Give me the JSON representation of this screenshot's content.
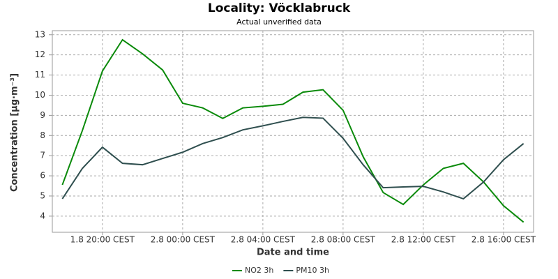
{
  "chart_data": {
    "type": "line",
    "title": "Locality: Vöcklabruck",
    "subtitle": "Actual unverified data",
    "x_label": "Date and time",
    "y_label": "Concentration [µg·m⁻³]",
    "categories": [
      null,
      null,
      "1.8 20:00 CEST",
      null,
      null,
      null,
      "2.8 00:00 CEST",
      null,
      null,
      null,
      "2.8 04:00 CEST",
      null,
      null,
      null,
      "2.8 08:00 CEST",
      null,
      null,
      null,
      "2.8 12:00 CEST",
      null,
      null,
      null,
      "2.8 16:00 CEST",
      null
    ],
    "series": [
      {
        "name": "NO2 3h",
        "color": "#0a8a0a",
        "values": [
          5.55,
          8.25,
          11.2,
          12.75,
          12.05,
          11.25,
          9.6,
          9.37,
          8.85,
          9.37,
          9.45,
          9.55,
          10.15,
          10.27,
          9.25,
          6.95,
          5.17,
          4.58,
          5.55,
          6.37,
          6.62,
          5.7,
          4.52,
          3.7
        ]
      },
      {
        "name": "PM10 3h",
        "color": "#2f4f4f",
        "values": [
          4.86,
          6.37,
          7.42,
          6.62,
          6.55,
          6.86,
          7.17,
          7.6,
          7.9,
          8.28,
          8.48,
          8.7,
          8.9,
          8.86,
          7.86,
          6.55,
          5.41,
          5.45,
          5.48,
          5.2,
          4.86,
          5.69,
          6.8,
          7.6
        ]
      }
    ],
    "ylim": [
      3.2,
      13.2
    ],
    "yticks": [
      4,
      5,
      6,
      7,
      8,
      9,
      10,
      11,
      12,
      13
    ],
    "grid": true,
    "legend": "bottom"
  }
}
